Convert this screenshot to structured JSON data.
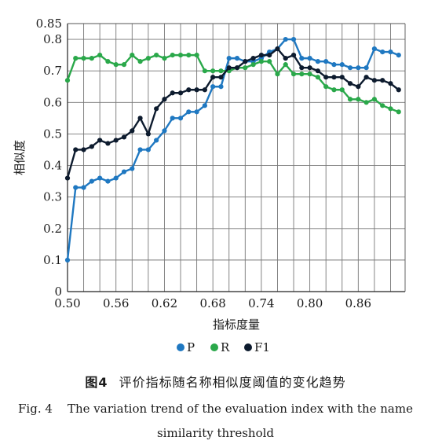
{
  "chart_data": {
    "type": "line",
    "ylabel": "相似度",
    "xlabel": "指标度量",
    "xlim": [
      0.5,
      0.918
    ],
    "ylim": [
      0,
      0.85
    ],
    "xticks": [
      "0.50",
      "0.56",
      "0.62",
      "0.68",
      "0.74",
      "0.80",
      "0.86"
    ],
    "xtick_values": [
      0.5,
      0.56,
      0.62,
      0.68,
      0.74,
      0.8,
      0.86
    ],
    "yticks": [
      "0",
      "0.1",
      "0.2",
      "0.3",
      "0.4",
      "0.5",
      "0.6",
      "0.7",
      "0.8",
      "0.85"
    ],
    "ytick_values": [
      0,
      0.1,
      0.2,
      0.3,
      0.4,
      0.5,
      0.6,
      0.7,
      0.8,
      0.85
    ],
    "grid": true,
    "legend_position": "bottom",
    "x": [
      0.5,
      0.51,
      0.52,
      0.53,
      0.54,
      0.55,
      0.56,
      0.57,
      0.58,
      0.59,
      0.6,
      0.61,
      0.62,
      0.63,
      0.64,
      0.65,
      0.66,
      0.67,
      0.68,
      0.69,
      0.7,
      0.71,
      0.72,
      0.73,
      0.74,
      0.75,
      0.76,
      0.77,
      0.78,
      0.79,
      0.8,
      0.81,
      0.82,
      0.83,
      0.84,
      0.85,
      0.86,
      0.87,
      0.88,
      0.89,
      0.9,
      0.91
    ],
    "series": [
      {
        "name": "P",
        "color": "#1f78c1",
        "values": [
          0.1,
          0.33,
          0.33,
          0.35,
          0.36,
          0.35,
          0.36,
          0.38,
          0.39,
          0.45,
          0.45,
          0.48,
          0.51,
          0.55,
          0.55,
          0.57,
          0.57,
          0.59,
          0.65,
          0.65,
          0.74,
          0.74,
          0.73,
          0.73,
          0.74,
          0.76,
          0.77,
          0.8,
          0.8,
          0.74,
          0.74,
          0.73,
          0.73,
          0.72,
          0.72,
          0.71,
          0.71,
          0.71,
          0.77,
          0.76,
          0.76,
          0.75
        ]
      },
      {
        "name": "R",
        "color": "#2aa84a",
        "values": [
          0.67,
          0.74,
          0.74,
          0.74,
          0.75,
          0.73,
          0.72,
          0.72,
          0.75,
          0.73,
          0.74,
          0.75,
          0.74,
          0.75,
          0.75,
          0.75,
          0.75,
          0.7,
          0.7,
          0.7,
          0.7,
          0.71,
          0.71,
          0.72,
          0.73,
          0.73,
          0.69,
          0.72,
          0.69,
          0.69,
          0.69,
          0.68,
          0.65,
          0.64,
          0.64,
          0.61,
          0.61,
          0.6,
          0.61,
          0.59,
          0.58,
          0.57
        ]
      },
      {
        "name": "F1",
        "color": "#0d1b2e",
        "values": [
          0.36,
          0.45,
          0.45,
          0.46,
          0.48,
          0.47,
          0.48,
          0.49,
          0.51,
          0.55,
          0.5,
          0.58,
          0.61,
          0.63,
          0.63,
          0.64,
          0.64,
          0.64,
          0.68,
          0.68,
          0.71,
          0.71,
          0.73,
          0.74,
          0.75,
          0.75,
          0.77,
          0.74,
          0.75,
          0.71,
          0.71,
          0.7,
          0.68,
          0.68,
          0.68,
          0.66,
          0.65,
          0.68,
          0.67,
          0.67,
          0.66,
          0.64
        ]
      }
    ]
  },
  "caption": {
    "fig_label_zh": "图4",
    "title_zh": "评价指标随名称相似度阈值的变化趋势",
    "line1_en": "Fig. 4    The variation trend of the evaluation index with the name",
    "line2_en": "similarity threshold"
  }
}
